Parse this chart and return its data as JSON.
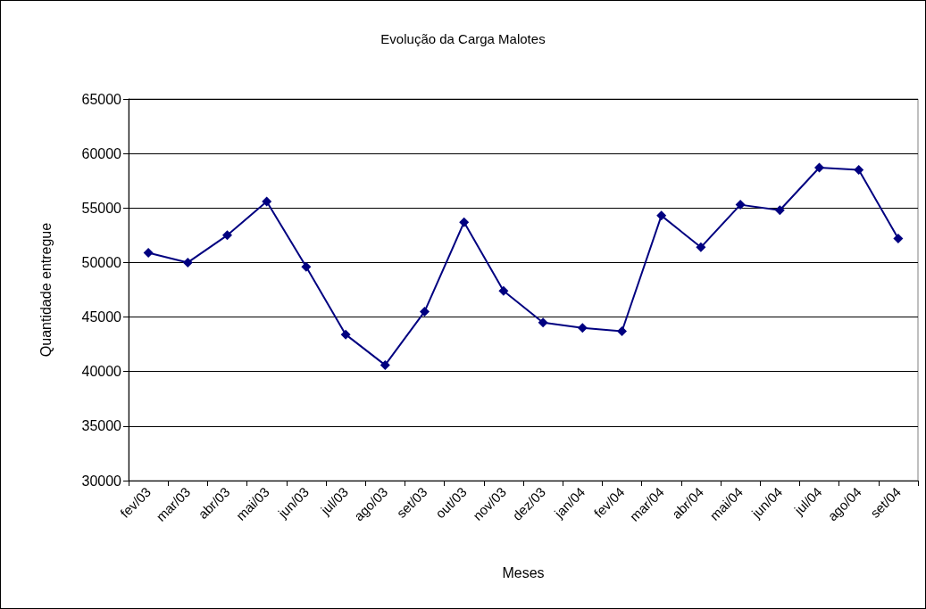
{
  "chart_data": {
    "type": "line",
    "title": "Evolução da Carga Malotes",
    "xlabel": "Meses",
    "ylabel": "Quantidade entregue",
    "categories": [
      "fev/03",
      "mar/03",
      "abr/03",
      "mai/03",
      "jun/03",
      "jul/03",
      "ago/03",
      "set/03",
      "out/03",
      "nov/03",
      "dez/03",
      "jan/04",
      "fev/04",
      "mar/04",
      "abr/04",
      "mai/04",
      "jun/04",
      "jul/04",
      "ago/04",
      "set/04"
    ],
    "series": [
      {
        "color": "#000080",
        "values": [
          50900,
          50000,
          52500,
          55600,
          49600,
          43400,
          40600,
          45500,
          53700,
          47400,
          44500,
          44000,
          43700,
          54300,
          51400,
          55300,
          54800,
          58700,
          58500,
          52200
        ]
      }
    ],
    "ylim": [
      30000,
      65000
    ],
    "yticks": [
      30000,
      35000,
      40000,
      45000,
      50000,
      55000,
      60000,
      65000
    ],
    "grid": "y",
    "marker": "diamond",
    "line_style": "solid"
  }
}
